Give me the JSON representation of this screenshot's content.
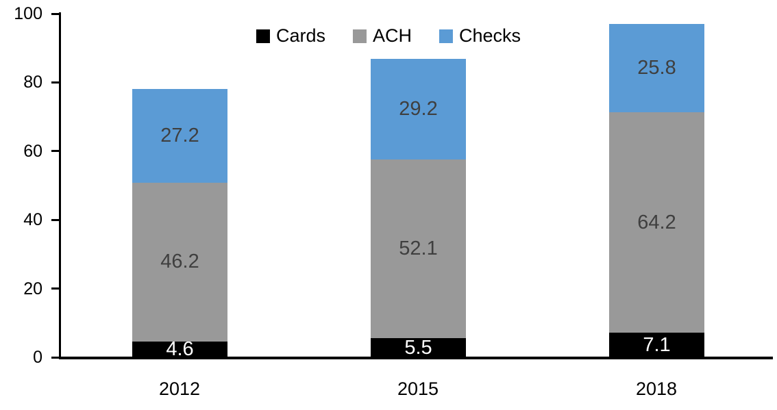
{
  "chart_data": {
    "type": "bar",
    "stacked": true,
    "title": "",
    "xlabel": "",
    "ylabel": "",
    "categories": [
      "2012",
      "2015",
      "2018"
    ],
    "series": [
      {
        "name": "Cards",
        "color": "#000000",
        "label_color": "#ffffff",
        "values": [
          4.6,
          5.5,
          7.1
        ]
      },
      {
        "name": "ACH",
        "color": "#999999",
        "label_color": "#3f3f3f",
        "values": [
          46.2,
          52.1,
          64.2
        ]
      },
      {
        "name": "Checks",
        "color": "#5B9BD5",
        "label_color": "#3f3f3f",
        "values": [
          27.2,
          29.2,
          25.8
        ]
      }
    ],
    "totals": [
      78.0,
      86.8,
      97.1
    ],
    "ylim": [
      0,
      100
    ],
    "yticks": [
      0,
      20,
      40,
      60,
      80,
      100
    ],
    "grid": false,
    "legend": {
      "position": "top-center",
      "entries": [
        "Cards",
        "ACH",
        "Checks"
      ]
    },
    "axis_color": "#000000"
  }
}
